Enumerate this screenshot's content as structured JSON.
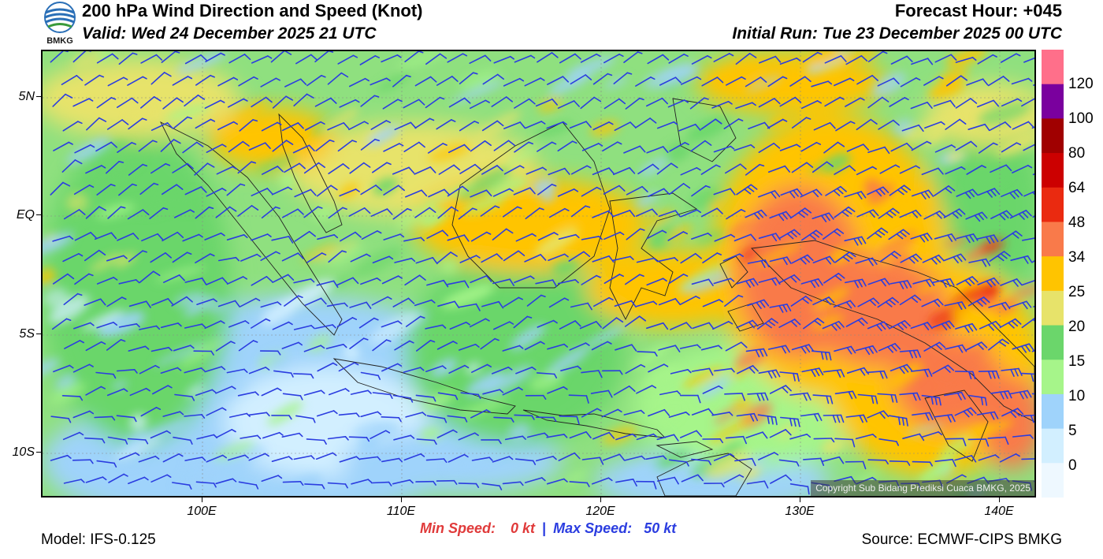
{
  "header": {
    "title": "200 hPa Wind Direction and Speed (Knot)",
    "valid": "Valid: Wed 24 December 2025 21 UTC",
    "forecast_hour": "Forecast Hour: +045",
    "initial_run": "Initial Run: Tue 23 December 2025 00 UTC",
    "logo_text": "BMKG"
  },
  "axes": {
    "lat_labels": [
      "5N",
      "EQ",
      "5S",
      "10S"
    ],
    "lon_labels": [
      "100E",
      "110E",
      "120E",
      "130E",
      "140E"
    ]
  },
  "colorbar": {
    "labels": [
      "120",
      "100",
      "80",
      "64",
      "48",
      "34",
      "25",
      "20",
      "15",
      "10",
      "5",
      "0"
    ],
    "colors": [
      "#ff6f8a",
      "#7a009e",
      "#a00000",
      "#cc0000",
      "#ea2a10",
      "#f97a4a",
      "#ffc400",
      "#e7e36a",
      "#6bd66b",
      "#a6f58a",
      "#9fd3fb",
      "#d2efff",
      "#eef8ff"
    ]
  },
  "annotations": {
    "copyright": "Copyright Sub Bidang Prediksi Cuaca BMKG, 2025",
    "min_speed_label": "Min Speed:",
    "min_speed_value": "0 kt",
    "separator": "|",
    "max_speed_label": "Max Speed:",
    "max_speed_value": "50 kt"
  },
  "footer": {
    "model": "Model: IFS-0.125",
    "source": "Source: ECMWF-CIPS BMKG"
  },
  "theme": {
    "barb_color": "#2b3de0",
    "coast_color": "#222222",
    "min_color": "#e03a3a",
    "max_color": "#2b3de0"
  }
}
